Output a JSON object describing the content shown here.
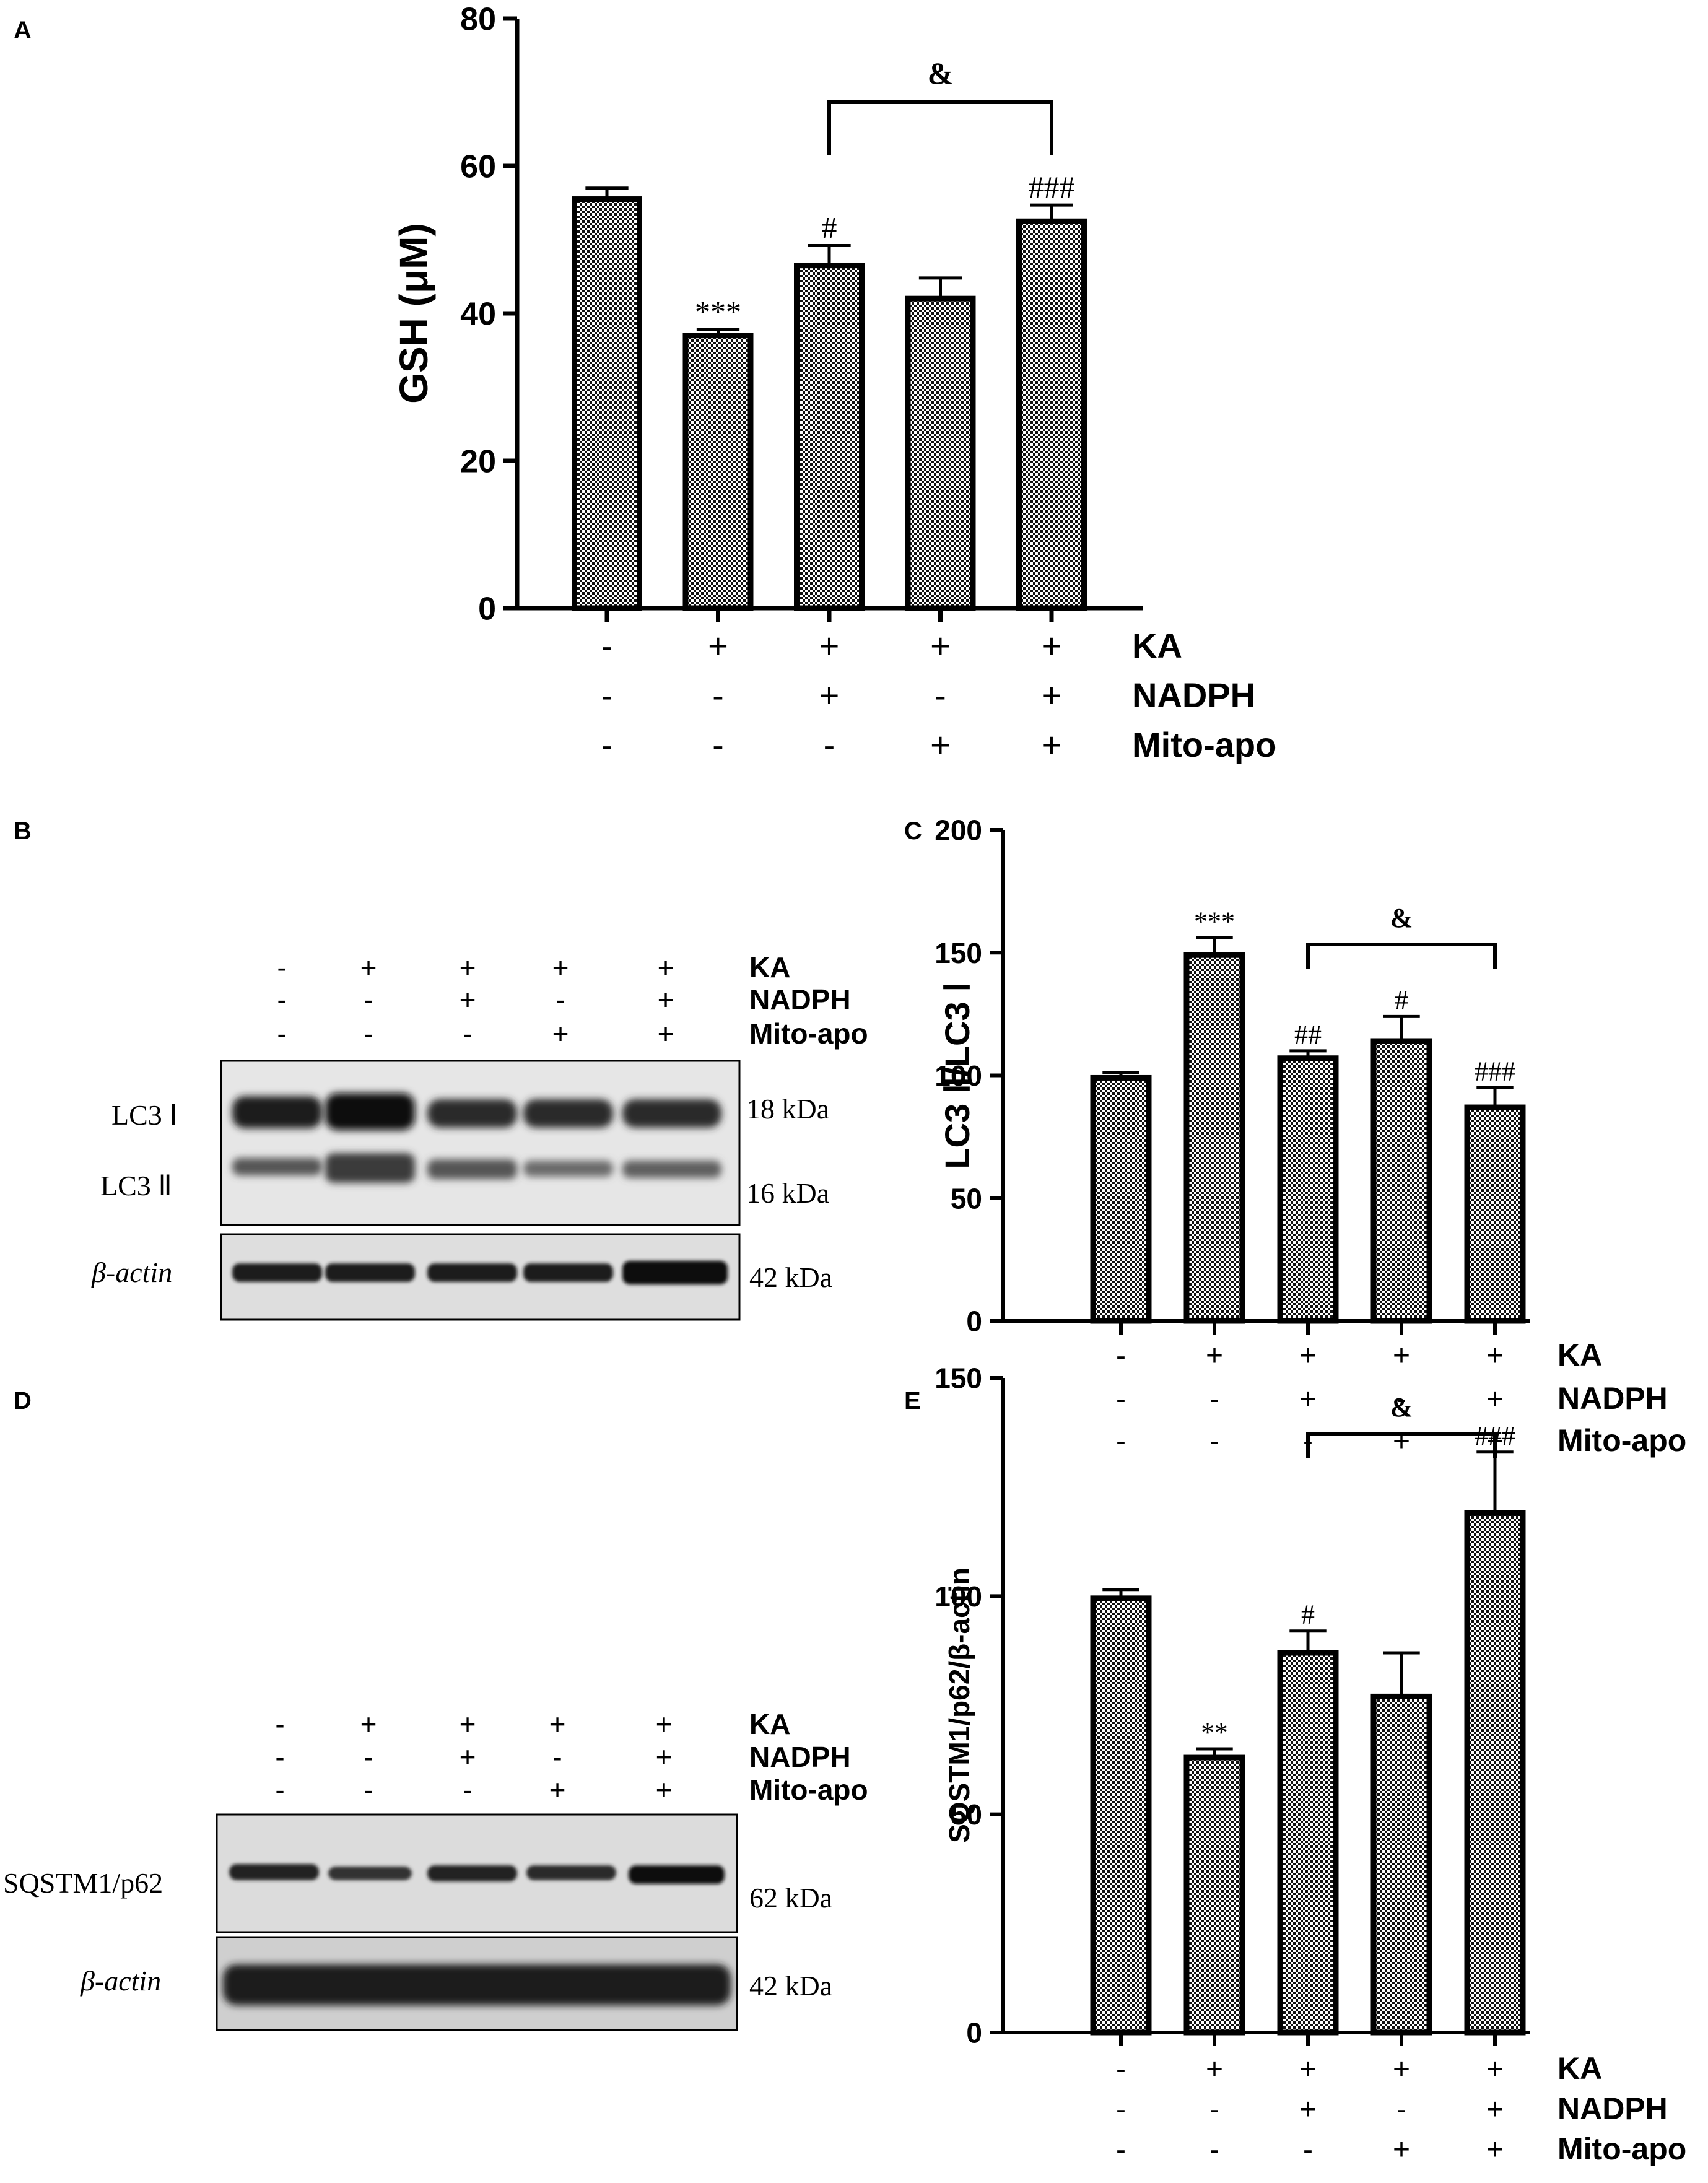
{
  "panels": [
    {
      "letter": "A"
    },
    {
      "letter": "B"
    },
    {
      "letter": "C"
    },
    {
      "letter": "D"
    },
    {
      "letter": "E"
    }
  ],
  "treatments": {
    "names": [
      "KA",
      "NADPH",
      "Mito-apo"
    ],
    "signs": [
      [
        "-",
        "+",
        "+",
        "+",
        "+"
      ],
      [
        "-",
        "-",
        "+",
        "-",
        "+"
      ],
      [
        "-",
        "-",
        "-",
        "+",
        "+"
      ]
    ]
  },
  "blots": {
    "B": {
      "rows": [
        {
          "label": "LC3 Ⅰ",
          "kda": "18 kDa"
        },
        {
          "label": "LC3 Ⅱ",
          "kda": "16 kDa"
        },
        {
          "label": "β-actin",
          "kda": "42 kDa"
        }
      ]
    },
    "D": {
      "rows": [
        {
          "label": "SQSTM1/p62",
          "kda": "62 kDa"
        },
        {
          "label": "β-actin",
          "kda": "42 kDa"
        }
      ]
    }
  },
  "chart_data": [
    {
      "panel": "A",
      "type": "bar",
      "ylabel": "GSH (μM)",
      "ylim": [
        0,
        80
      ],
      "yticks": [
        0,
        20,
        40,
        60,
        80
      ],
      "values": [
        55.5,
        37,
        46.5,
        42,
        52.5
      ],
      "errors": [
        1.5,
        0.8,
        2.7,
        2.8,
        2.2
      ],
      "annotations": [
        "",
        "***",
        "#",
        "",
        "###"
      ],
      "bracket": {
        "from": 2,
        "to": 4,
        "label": "&"
      },
      "fill": "checkered"
    },
    {
      "panel": "C",
      "type": "bar",
      "ylabel": "LC3 Ⅱ/LC3 Ⅰ",
      "ylim": [
        0,
        200
      ],
      "yticks": [
        0,
        50,
        100,
        150,
        200
      ],
      "values": [
        99,
        149,
        107,
        114,
        87
      ],
      "errors": [
        2,
        7,
        3,
        10,
        8
      ],
      "annotations": [
        "",
        "***",
        "##",
        "#",
        "###"
      ],
      "bracket": {
        "from": 2,
        "to": 4,
        "label": "&"
      },
      "fill": "checkered"
    },
    {
      "panel": "E",
      "type": "bar",
      "ylabel": "SQSTM1/p62/β-actin",
      "ylim": [
        0,
        150
      ],
      "yticks": [
        0,
        50,
        100,
        150
      ],
      "values": [
        99.5,
        63,
        87,
        77,
        119
      ],
      "errors": [
        2,
        2,
        5,
        10,
        14
      ],
      "annotations": [
        "",
        "**",
        "#",
        "",
        "###"
      ],
      "bracket": {
        "from": 2,
        "to": 4,
        "label": "&"
      },
      "fill": "checkered"
    }
  ]
}
